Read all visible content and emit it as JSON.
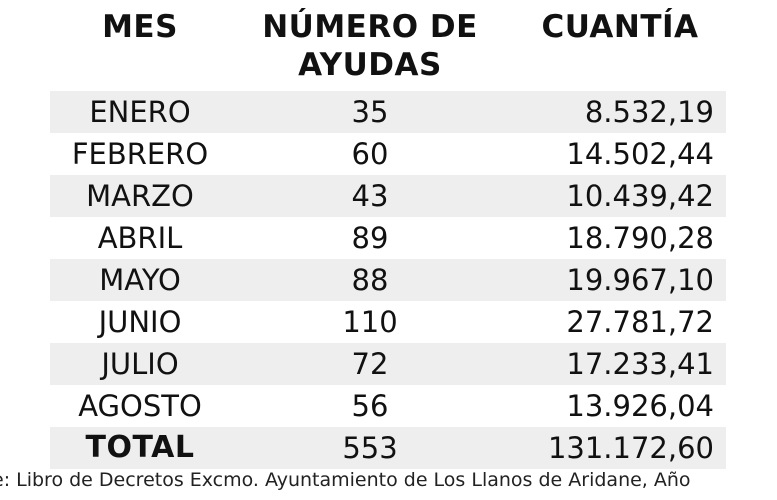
{
  "table": {
    "headers": {
      "mes": "MES",
      "numero": "NÚMERO DE AYUDAS",
      "cuantia": "CUANTÍA"
    },
    "rows": [
      {
        "mes": "ENERO",
        "numero": "35",
        "cuantia": "8.532,19"
      },
      {
        "mes": "FEBRERO",
        "numero": "60",
        "cuantia": "14.502,44"
      },
      {
        "mes": "MARZO",
        "numero": "43",
        "cuantia": "10.439,42"
      },
      {
        "mes": "ABRIL",
        "numero": "89",
        "cuantia": "18.790,28"
      },
      {
        "mes": "MAYO",
        "numero": "88",
        "cuantia": "19.967,10"
      },
      {
        "mes": "JUNIO",
        "numero": "110",
        "cuantia": "27.781,72"
      },
      {
        "mes": "JULIO",
        "numero": "72",
        "cuantia": "17.233,41"
      },
      {
        "mes": "AGOSTO",
        "numero": "56",
        "cuantia": "13.926,04"
      }
    ],
    "total": {
      "mes": "TOTAL",
      "numero": "553",
      "cuantia": "131.172,60"
    }
  },
  "source_text": "e: Libro de Decretos Excmo. Ayuntamiento de Los Llanos de Aridane, Año"
}
